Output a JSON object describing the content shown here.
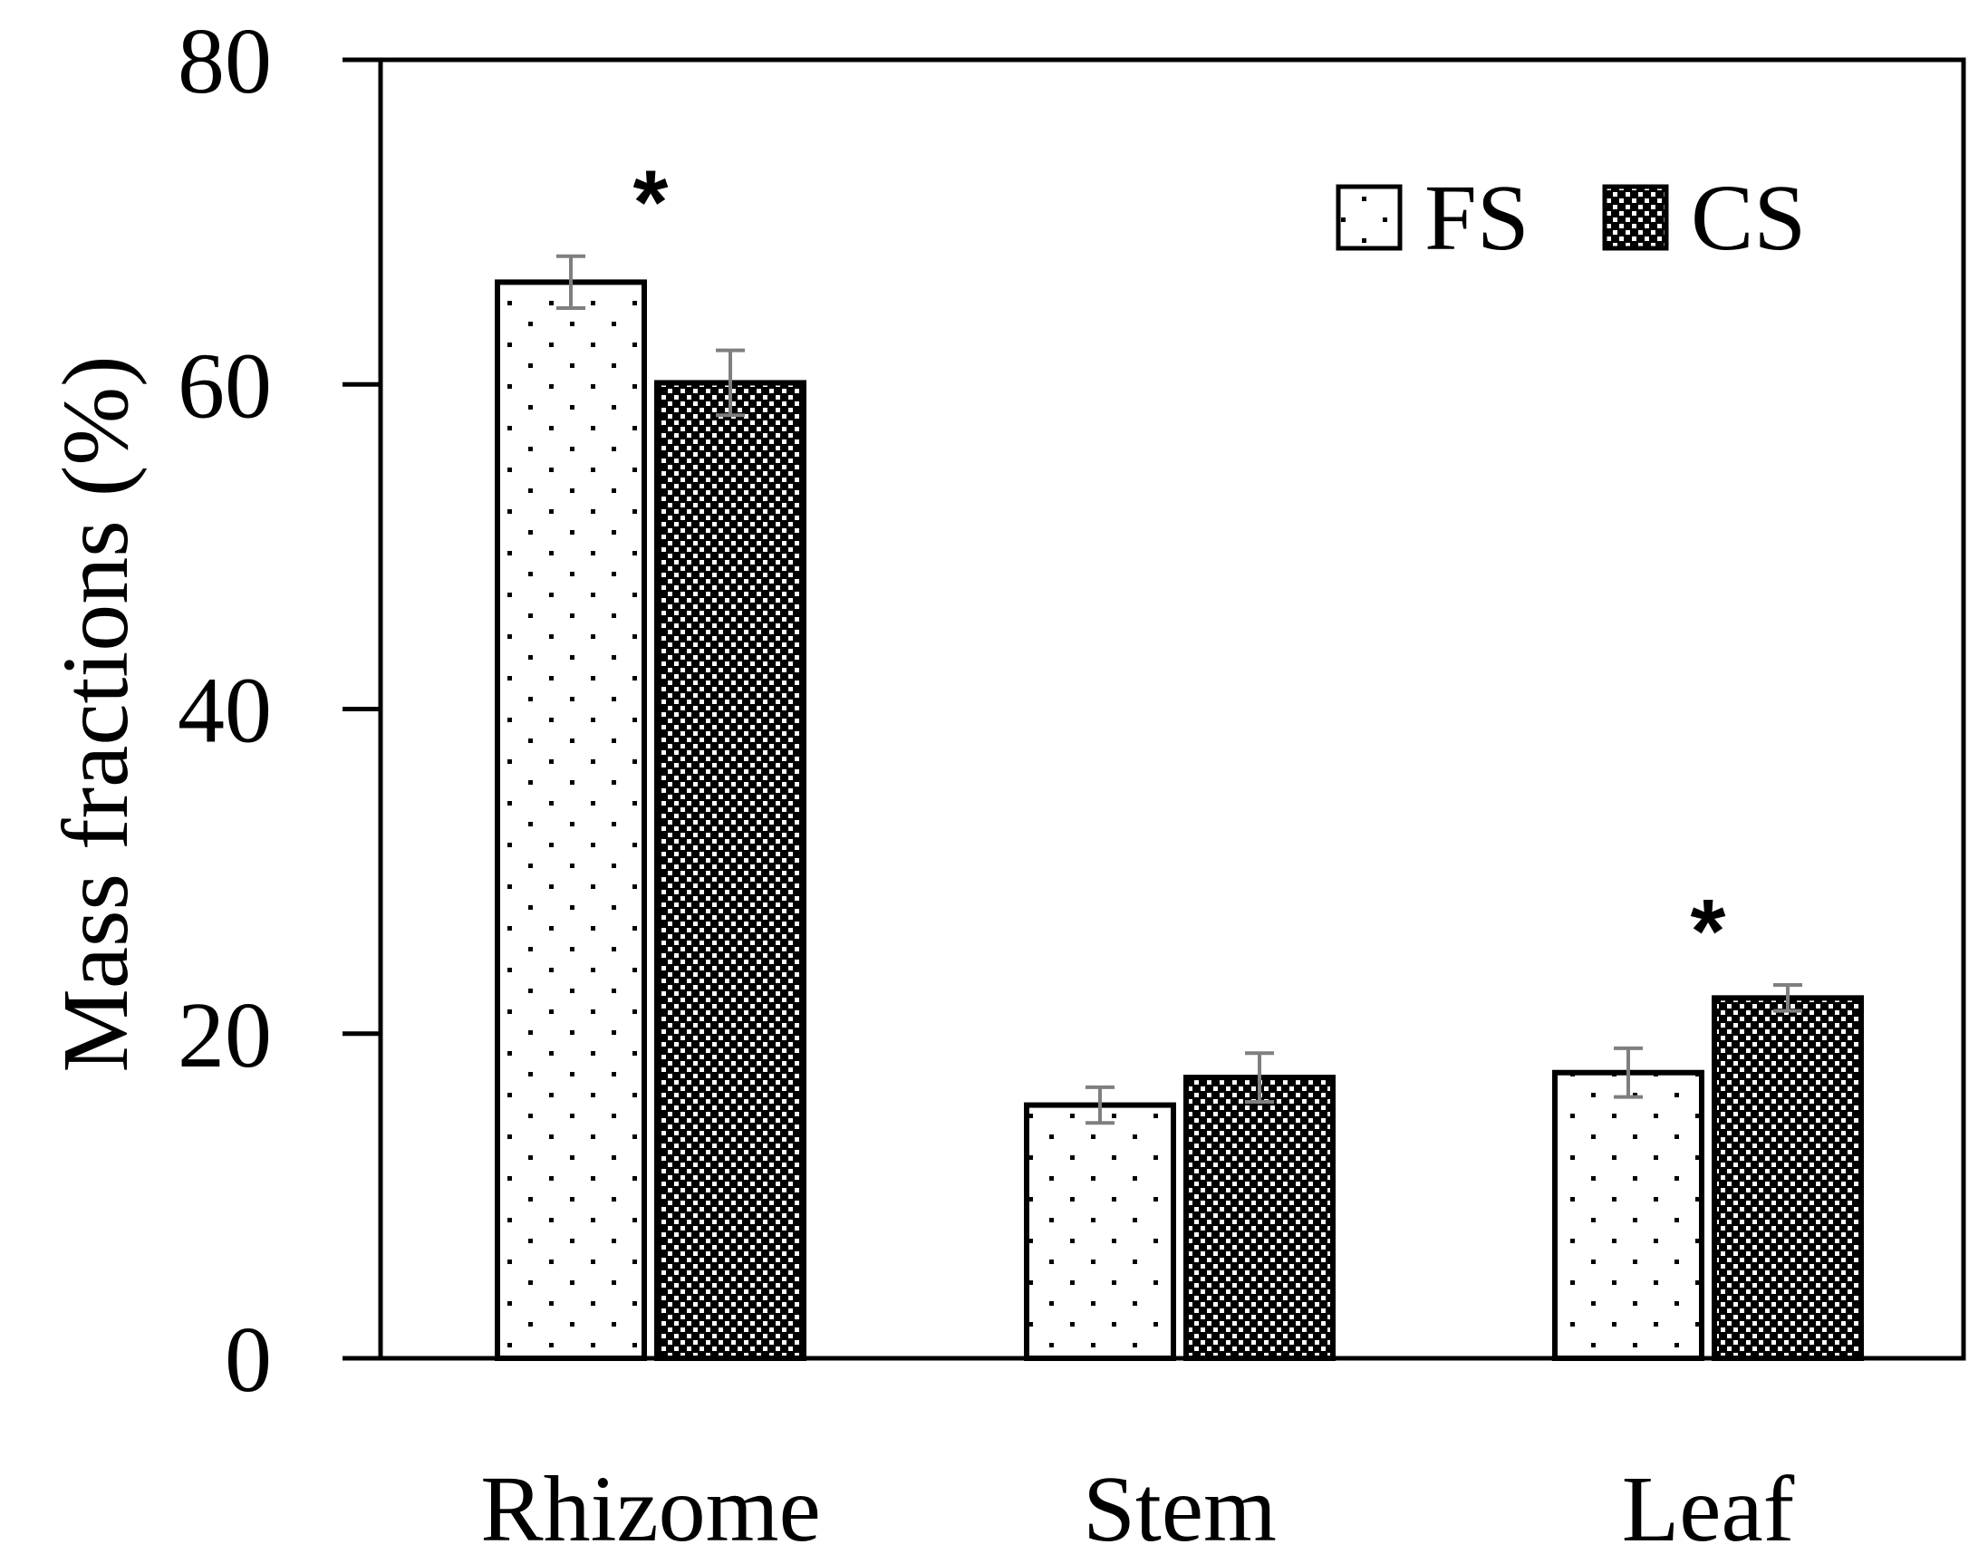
{
  "chart_data": {
    "type": "bar",
    "title": "",
    "xlabel": "",
    "ylabel": "Mass fractions (%)",
    "ylim": [
      0,
      80
    ],
    "yticks": [
      "0",
      "20",
      "40",
      "60",
      "80"
    ],
    "categories": [
      "Rhizome",
      "Stem",
      "Leaf"
    ],
    "series": [
      {
        "name": "FS",
        "values": [
          66.3,
          15.6,
          17.6
        ],
        "errors": [
          1.6,
          1.1,
          1.5
        ],
        "pattern": "sparse-dots",
        "fill": "#ffffff"
      },
      {
        "name": "CS",
        "values": [
          60.1,
          17.3,
          22.2
        ],
        "errors": [
          2.0,
          1.5,
          0.8
        ],
        "pattern": "dense-checker",
        "fill": "#000000"
      }
    ],
    "significance": [
      {
        "category": "Rhizome",
        "label": "*"
      },
      {
        "category": "Leaf",
        "label": "*"
      }
    ],
    "legend": {
      "position": "top-right",
      "entries": [
        "FS",
        "CS"
      ]
    },
    "grid": false
  }
}
